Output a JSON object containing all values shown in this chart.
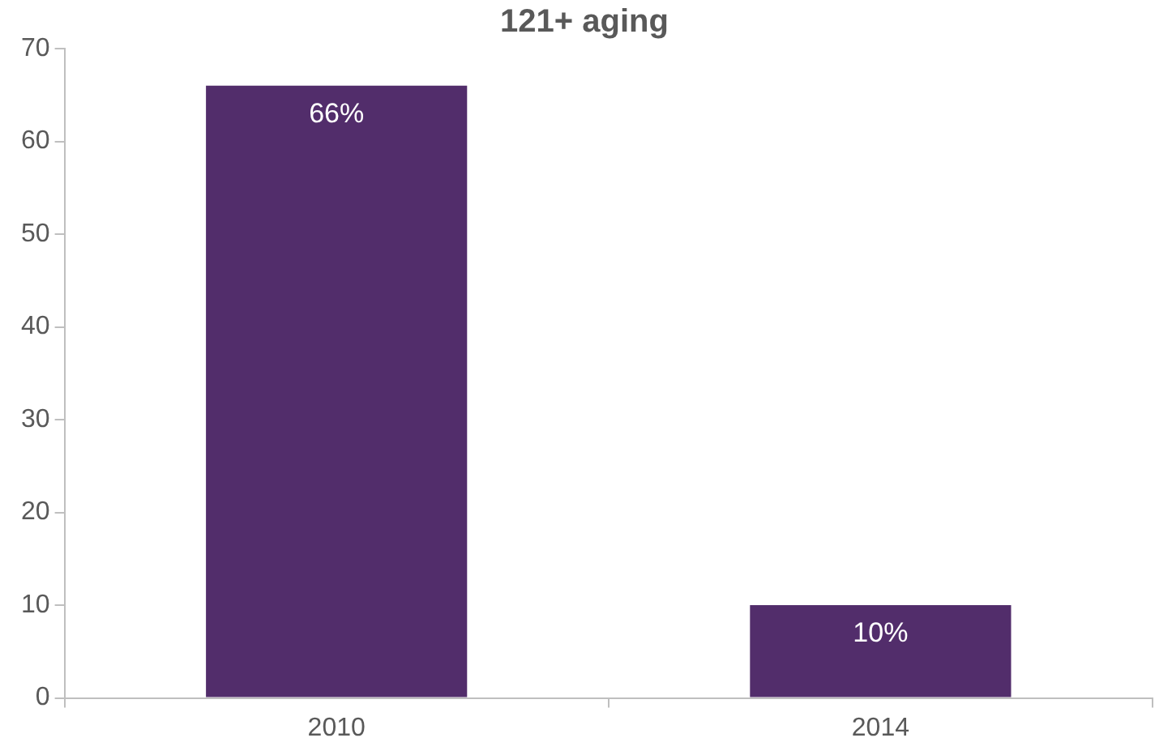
{
  "chart_data": {
    "type": "bar",
    "title": "121+ aging",
    "categories": [
      "2010",
      "2014"
    ],
    "values": [
      66,
      10
    ],
    "color": "#522d6b",
    "value_labels": [
      "66%",
      "10%"
    ],
    "ylim": [
      0,
      70
    ],
    "yticks": [
      0,
      10,
      20,
      30,
      40,
      50,
      60,
      70
    ],
    "grid": false,
    "legend": false
  }
}
